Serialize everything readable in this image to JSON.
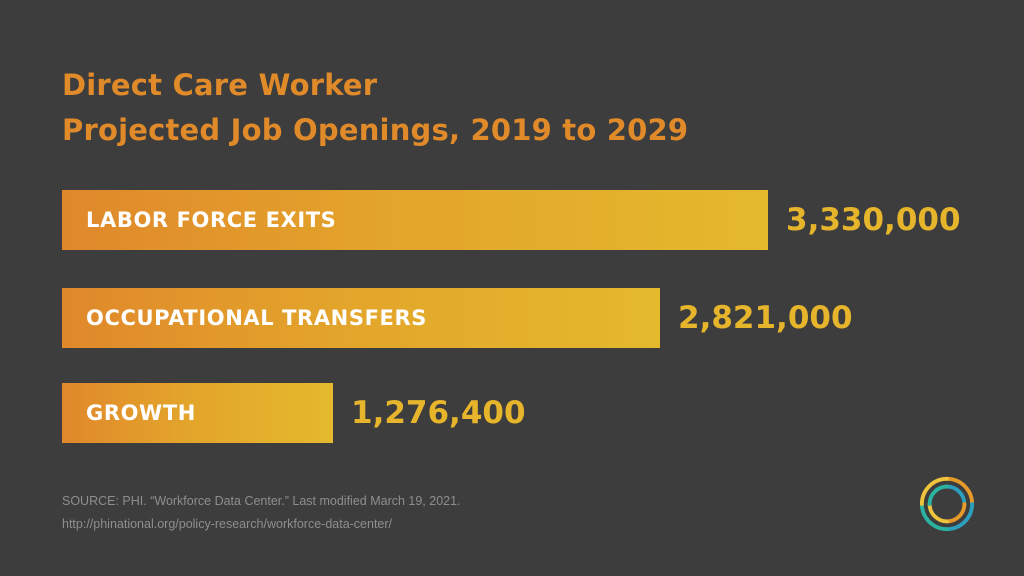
{
  "title": {
    "line1": "Direct Care Worker",
    "line2": "Projected Job Openings, 2019 to 2029"
  },
  "chart_data": {
    "type": "bar",
    "orientation": "horizontal",
    "categories": [
      "LABOR FORCE EXITS",
      "OCCUPATIONAL TRANSFERS",
      "GROWTH"
    ],
    "values": [
      3330000,
      2821000,
      1276400
    ],
    "value_labels": [
      "3,330,000",
      "2,821,000",
      "1,276,400"
    ],
    "title": "Direct Care Worker Projected Job Openings, 2019 to 2029",
    "grid": false,
    "legend": "none"
  },
  "source": {
    "line1": "SOURCE: PHI. “Workforce Data Center.” Last modified March 19, 2021.",
    "line2": "http://phinational.org/policy-research/workforce-data-center/"
  },
  "logo": {
    "icon": "phi-circle-logo-icon",
    "colors": [
      "#e59a2a",
      "#2c9fbf",
      "#29b3a0",
      "#f0c33c"
    ]
  },
  "colors": {
    "background": "#3d3d3d",
    "title": "#e08a2a",
    "bar_start": "#e0882b",
    "bar_end": "#e4b92c",
    "value": "#e6b52c",
    "bar_label": "#ffffff",
    "source": "#8e8e8e"
  }
}
